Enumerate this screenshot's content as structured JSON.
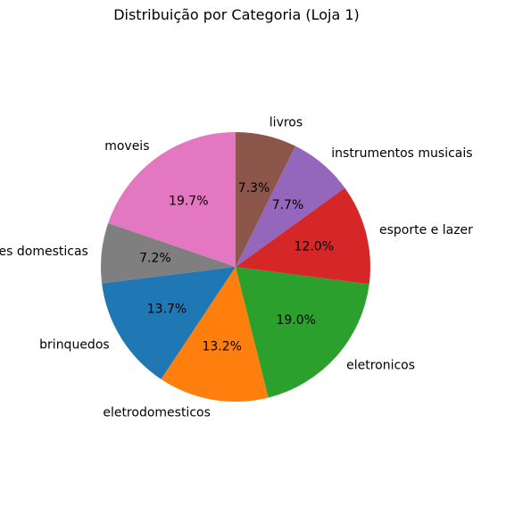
{
  "chart_data": {
    "type": "pie",
    "title": "Distribuição por Categoria (Loja 1)",
    "start_angle_deg": 90,
    "direction": "counterclockwise",
    "slices": [
      {
        "label": "moveis",
        "value": 19.7,
        "pct_label": "19.7%",
        "color": "#e377c2"
      },
      {
        "label": "utilidades domesticas",
        "value": 7.2,
        "pct_label": "7.2%",
        "color": "#7f7f7f"
      },
      {
        "label": "brinquedos",
        "value": 13.7,
        "pct_label": "13.7%",
        "color": "#1f77b4"
      },
      {
        "label": "eletrodomesticos",
        "value": 13.2,
        "pct_label": "13.2%",
        "color": "#ff7f0e"
      },
      {
        "label": "eletronicos",
        "value": 19.0,
        "pct_label": "19.0%",
        "color": "#2ca02c"
      },
      {
        "label": "esporte e lazer",
        "value": 12.0,
        "pct_label": "12.0%",
        "color": "#d62728"
      },
      {
        "label": "instrumentos musicais",
        "value": 7.7,
        "pct_label": "7.7%",
        "color": "#9467bd"
      },
      {
        "label": "livros",
        "value": 7.3,
        "pct_label": "7.3%",
        "color": "#8c564b"
      }
    ]
  }
}
